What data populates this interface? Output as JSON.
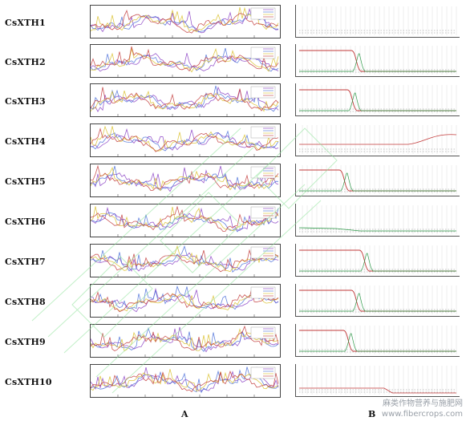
{
  "panel_labels": {
    "left": "A",
    "right": "B"
  },
  "rows": [
    {
      "label": "CsXTH1"
    },
    {
      "label": "CsXTH2"
    },
    {
      "label": "CsXTH3"
    },
    {
      "label": "CsXTH4"
    },
    {
      "label": "CsXTH5"
    },
    {
      "label": "CsXTH6"
    },
    {
      "label": "CsXTH7"
    },
    {
      "label": "CsXTH8"
    },
    {
      "label": "CsXTH9"
    },
    {
      "label": "CsXTH10"
    }
  ],
  "watermark": {
    "line1": "麻类作物营养与施肥网",
    "line2": "www.fibercrops.com"
  },
  "colors": {
    "purple": "#8a3fc4",
    "blue": "#4a6fd8",
    "yellow": "#d9c02a",
    "red": "#c23a3a",
    "green": "#2f9a4a",
    "watermark_green": "#7fdc8a"
  }
}
